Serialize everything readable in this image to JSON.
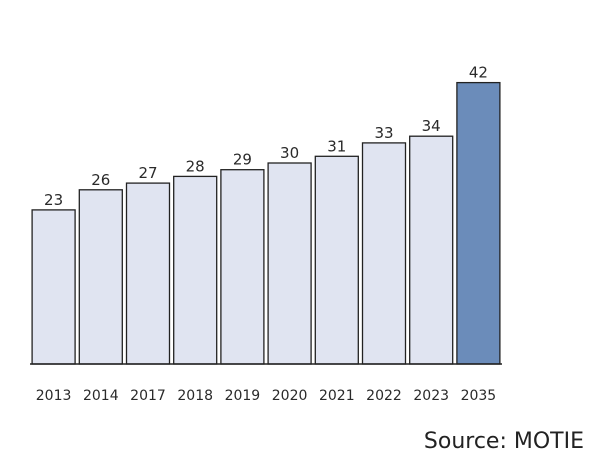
{
  "chart_data": {
    "type": "bar",
    "categories": [
      "2013",
      "2014",
      "2017",
      "2018",
      "2019",
      "2020",
      "2021",
      "2022",
      "2023",
      "2035"
    ],
    "values": [
      23,
      26,
      27,
      28,
      29,
      30,
      31,
      33,
      34,
      42
    ],
    "highlight_index": 9,
    "title": "",
    "xlabel": "",
    "ylabel": "",
    "ylim": [
      0,
      44
    ],
    "grid": false,
    "legend": "none",
    "colors": {
      "bar_fill": "#e0e4f1",
      "bar_highlight": "#6b8cba",
      "bar_stroke": "#222222",
      "axis": "#222222"
    }
  },
  "source_text": "Source: MOTIE"
}
